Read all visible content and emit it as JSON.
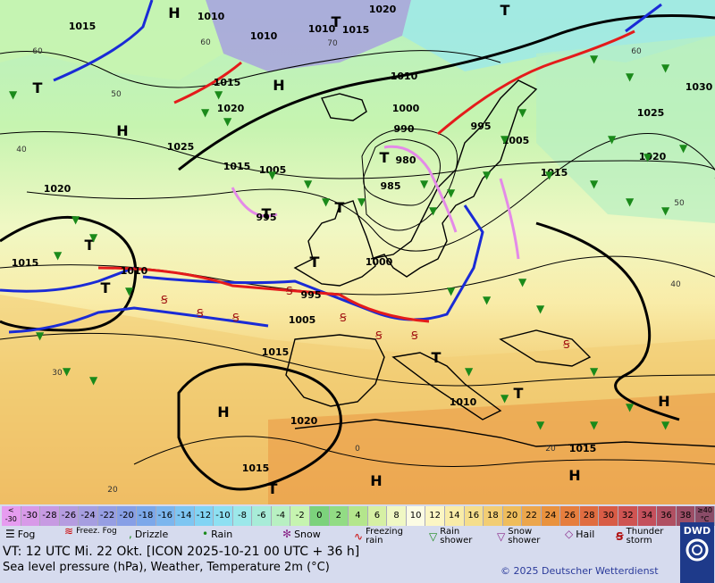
{
  "map": {
    "pressure_labels": [
      "1015",
      "1010",
      "1010",
      "1015",
      "1020",
      "1010",
      "1020",
      "1015",
      "1025",
      "1015",
      "1005",
      "1020",
      "1015",
      "1010",
      "995",
      "985",
      "980",
      "990",
      "1000",
      "995",
      "1000",
      "995",
      "1005",
      "1015",
      "1020",
      "1010",
      "1015",
      "1015",
      "1005",
      "1025",
      "1020",
      "1030",
      "1015",
      "1010",
      "1000",
      "1005"
    ],
    "highs": [
      "H",
      "H",
      "H",
      "H",
      "H",
      "H",
      "H"
    ],
    "lows": [
      "T",
      "T",
      "T",
      "T",
      "T",
      "T",
      "T",
      "T",
      "T",
      "T",
      "T",
      "T"
    ],
    "temp_labels": [
      "60",
      "50",
      "60",
      "40",
      "30",
      "20",
      "0",
      "20",
      "40",
      "50",
      "70",
      "60"
    ]
  },
  "scale": {
    "labels": [
      "< -30",
      "-30",
      "-28",
      "-26",
      "-24",
      "-22",
      "-20",
      "-18",
      "-16",
      "-14",
      "-12",
      "-10",
      "-8",
      "-6",
      "-4",
      "-2",
      "0",
      "2",
      "4",
      "6",
      "8",
      "10",
      "12",
      "14",
      "16",
      "18",
      "20",
      "22",
      "24",
      "26",
      "28",
      "30",
      "32",
      "34",
      "36",
      "38",
      "≥40 °C"
    ],
    "colors": [
      "#e69cf0",
      "#d89ae8",
      "#c79ae2",
      "#b59ce0",
      "#a69ee0",
      "#969ee3",
      "#879fe6",
      "#7ca8ea",
      "#7cb6ee",
      "#7ec6f2",
      "#82d4f4",
      "#8ee0f2",
      "#9ce8ea",
      "#a8ecd8",
      "#b8f0c2",
      "#c6f4b0",
      "#7cd27c",
      "#92dc84",
      "#b4e68c",
      "#d6f0a4",
      "#f0f8c4",
      "#fcfce4",
      "#fcf6c4",
      "#f9eca8",
      "#f5de8c",
      "#f2cd74",
      "#efbd5c",
      "#eca64c",
      "#e9923e",
      "#e67e3e",
      "#e06c40",
      "#d85c46",
      "#cf5452",
      "#c4505c",
      "#b05062",
      "#9c4e66",
      "#8a4c68"
    ]
  },
  "legend": {
    "fog": "Fog",
    "freezing_fog": "Freez. Fog",
    "drizzle": "Drizzle",
    "rain": "Rain",
    "snow": "Snow",
    "freezing_rain": "Freezing rain",
    "rain_shower": "Rain shower",
    "snow_shower": "Snow shower",
    "hail": "Hail",
    "thunderstorm": "Thunder storm"
  },
  "footer": {
    "valid_time": "VT: 12 UTC Mi.  22 Okt. [ICON 2025-10-21  00 UTC + 36 h]",
    "subtitle": "Sea level pressure (hPa), Weather, Temperature 2m (°C)",
    "copyright": "© 2025 Deutscher Wetterdienst",
    "logo": "DWD"
  }
}
